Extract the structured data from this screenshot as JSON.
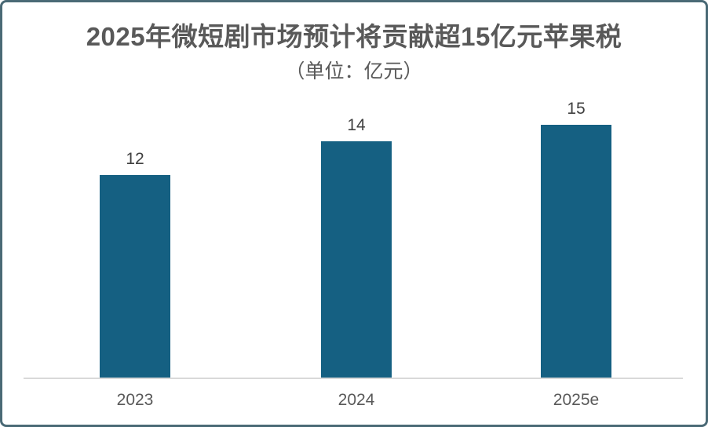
{
  "chart_data": {
    "type": "bar",
    "title": "2025年微短剧市场预计将贡献超15亿元苹果税",
    "subtitle": "（单位：亿元）",
    "categories": [
      "2023",
      "2024",
      "2025e"
    ],
    "values": [
      12,
      14,
      15
    ],
    "data_labels": [
      "12",
      "14",
      "15"
    ],
    "xlabel": "",
    "ylabel": "",
    "ylim": [
      0,
      15
    ],
    "grid": false,
    "legend": false,
    "y_axis_ticks_visible": false,
    "colors": {
      "bar": "#156082",
      "title_text": "#595959",
      "subtitle_text": "#595959",
      "value_label_text": "#404040",
      "category_label_text": "#595959",
      "axis_line": "#d9d9d9",
      "card_border": "#4b6a76",
      "background": "#ffffff"
    }
  }
}
